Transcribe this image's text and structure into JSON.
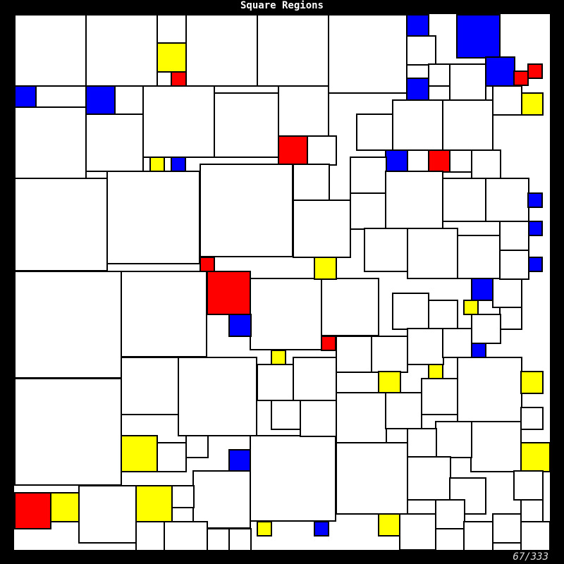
{
  "title": "Square Regions",
  "counter": "67/333",
  "palette": {
    "white": "#ffffff",
    "red": "#ff0000",
    "yellow": "#ffff00",
    "blue": "#0000ff",
    "line": "#000000",
    "background": "#000000"
  }
}
